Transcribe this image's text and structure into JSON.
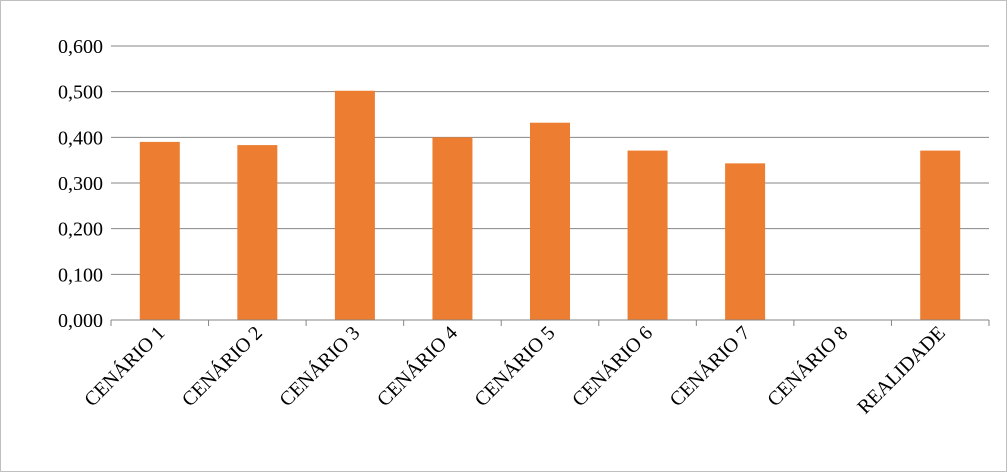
{
  "chart_data": {
    "type": "bar",
    "categories": [
      "CENÁRIO 1",
      "CENÁRIO 2",
      "CENÁRIO 3",
      "CENÁRIO 4",
      "CENÁRIO 5",
      "CENÁRIO 6",
      "CENÁRIO 7",
      "CENÁRIO 8",
      "REALIDADE"
    ],
    "values": [
      0.39,
      0.383,
      0.502,
      0.4,
      0.432,
      0.371,
      0.343,
      0,
      0.371
    ],
    "yticks": [
      "0,000",
      "0,100",
      "0,200",
      "0,300",
      "0,400",
      "0,500",
      "0,600"
    ],
    "ylim": [
      0,
      0.6
    ],
    "title": "",
    "xlabel": "",
    "ylabel": "",
    "grid": true,
    "legend": "none",
    "bar_color": "#ED7D31",
    "grid_color": "#868686"
  }
}
